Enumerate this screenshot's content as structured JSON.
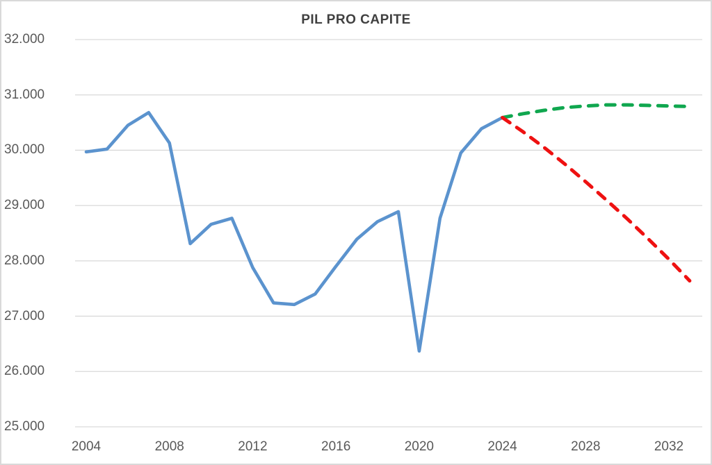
{
  "title": "PIL PRO CAPITE",
  "colors": {
    "blue_line": "#5B93CE",
    "green_line": "#10A74F",
    "red_line": "#EE1111",
    "gridline": "#D9D9D9",
    "title_text": "#404040",
    "tick_text": "#595959",
    "background": "#FFFFFF",
    "border": "#D9D9D9"
  },
  "chart_data": {
    "type": "line",
    "title": "PIL PRO CAPITE",
    "xlabel": "",
    "ylabel": "",
    "x_range": [
      2004,
      2033
    ],
    "ylim": [
      25000,
      32000
    ],
    "grid": true,
    "legend_position": "none",
    "y_ticks": [
      {
        "value": 32000,
        "label": "32.000"
      },
      {
        "value": 31000,
        "label": "31.000"
      },
      {
        "value": 30000,
        "label": "30.000"
      },
      {
        "value": 29000,
        "label": "29.000"
      },
      {
        "value": 28000,
        "label": "28.000"
      },
      {
        "value": 27000,
        "label": "27.000"
      },
      {
        "value": 26000,
        "label": "26.000"
      },
      {
        "value": 25000,
        "label": "25.000"
      }
    ],
    "x_ticks": [
      {
        "value": 2004,
        "label": "2004"
      },
      {
        "value": 2008,
        "label": "2008"
      },
      {
        "value": 2012,
        "label": "2012"
      },
      {
        "value": 2016,
        "label": "2016"
      },
      {
        "value": 2020,
        "label": "2020"
      },
      {
        "value": 2024,
        "label": "2024"
      },
      {
        "value": 2028,
        "label": "2028"
      },
      {
        "value": 2032,
        "label": "2032"
      }
    ],
    "series": [
      {
        "name": "blue-solid-line",
        "style": "solid",
        "color": "#5B93CE",
        "x": [
          2004,
          2005,
          2006,
          2007,
          2008,
          2009,
          2010,
          2011,
          2012,
          2013,
          2014,
          2015,
          2016,
          2017,
          2018,
          2019,
          2020,
          2021,
          2022,
          2023,
          2024
        ],
        "values": [
          29970,
          30020,
          30450,
          30680,
          30130,
          28310,
          28660,
          28770,
          27880,
          27240,
          27210,
          27400,
          27900,
          28390,
          28710,
          28890,
          26370,
          28770,
          29950,
          30390,
          30590
        ]
      },
      {
        "name": "green-dashed-line",
        "style": "dashed",
        "color": "#10A74F",
        "x": [
          2024,
          2025,
          2026,
          2027,
          2028,
          2029,
          2030,
          2031,
          2032,
          2033
        ],
        "values": [
          30590,
          30660,
          30720,
          30770,
          30800,
          30820,
          30820,
          30810,
          30800,
          30790
        ]
      },
      {
        "name": "red-dashed-line",
        "style": "dashed",
        "color": "#EE1111",
        "x": [
          2024,
          2025,
          2026,
          2027,
          2028,
          2029,
          2030,
          2031,
          2032,
          2033
        ],
        "values": [
          30590,
          30330,
          30050,
          29750,
          29430,
          29100,
          28760,
          28400,
          28030,
          27640
        ]
      }
    ]
  }
}
